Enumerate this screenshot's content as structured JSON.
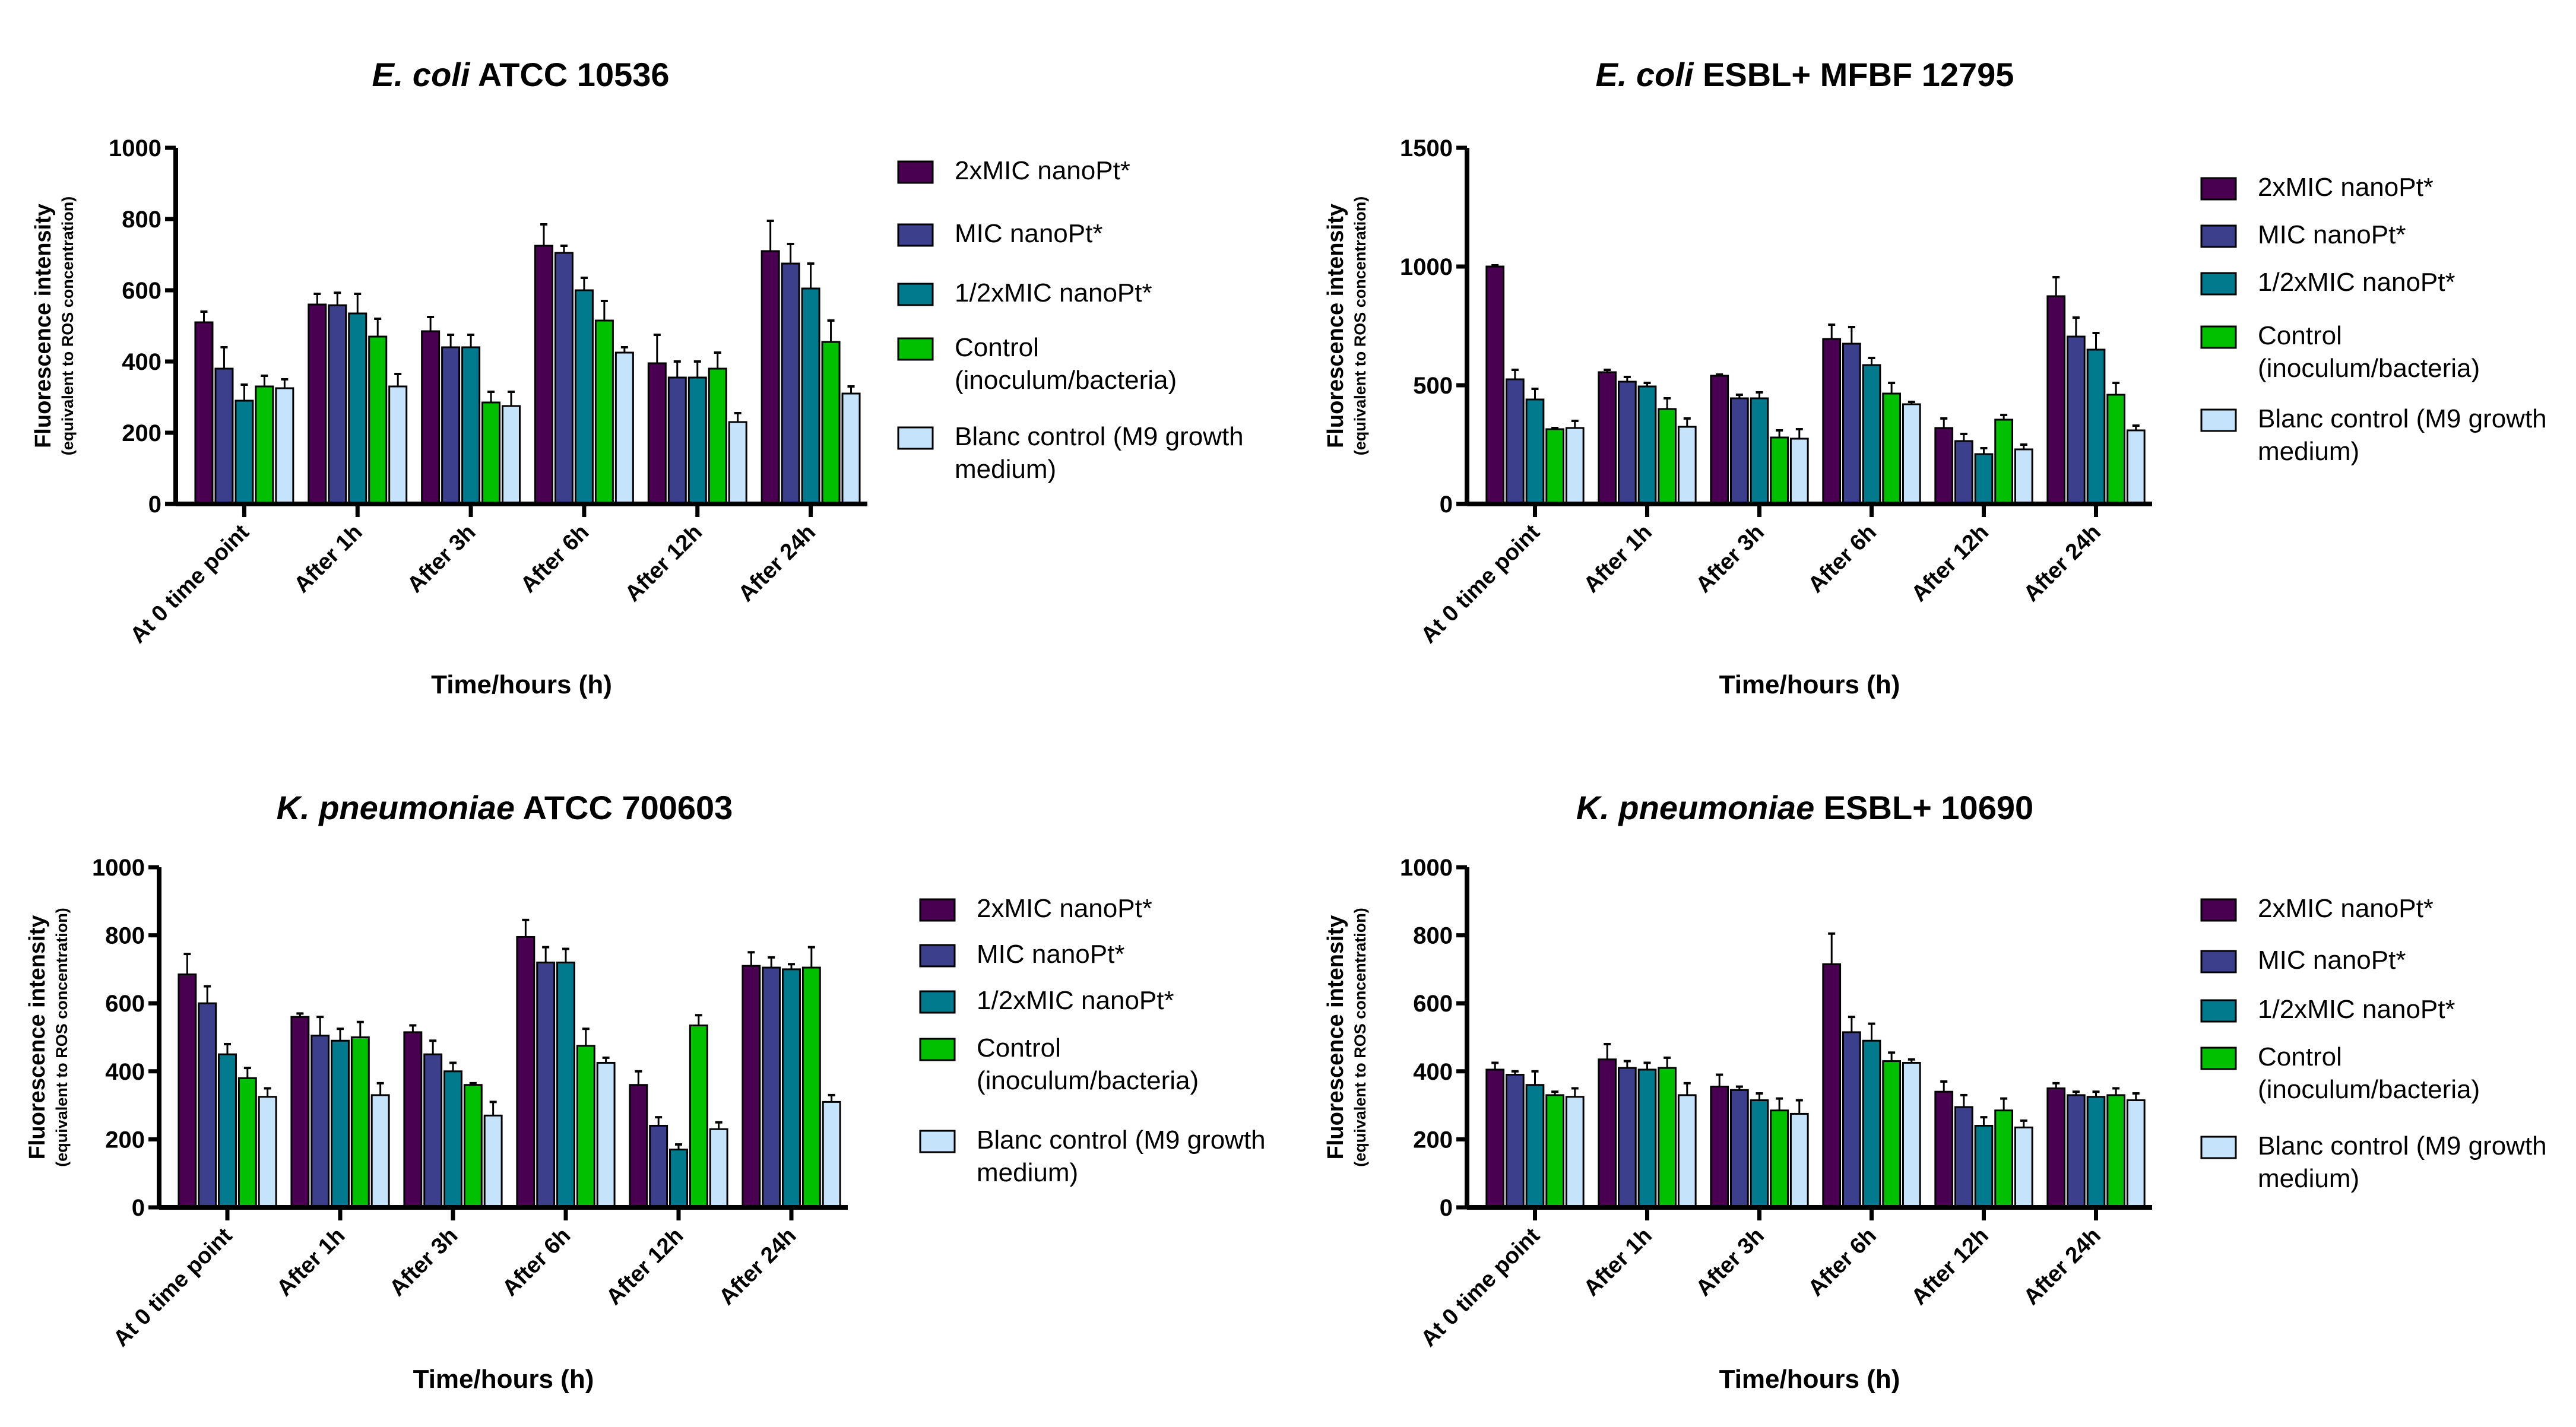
{
  "colors": [
    "#4a0050",
    "#3b3f8c",
    "#007a8c",
    "#00c000",
    "#c5e3fa"
  ],
  "legend": [
    "2xMIC nanoPt*",
    "MIC nanoPt*",
    "1/2xMIC nanoPt*",
    [
      "Control",
      "(inoculum/bacteria)"
    ],
    [
      "Blanc control (M9 growth",
      "medium)"
    ]
  ],
  "chart_data": [
    {
      "type": "bar",
      "title_italic": "E. coli",
      "title_rest": " ATCC  10536",
      "ylabel": "Fluorescence intensity",
      "ylabel_sub": "(equivalent to ROS concentration)",
      "xlabel": "Time/hours (h)",
      "ylim": [
        0,
        1000
      ],
      "yticks": [
        0,
        200,
        400,
        600,
        800,
        1000
      ],
      "categories": [
        "At 0 time point",
        "After 1h",
        "After 3h",
        "After 6h",
        "After 12h",
        "After 24h"
      ],
      "series": [
        {
          "name": "2xMIC nanoPt*",
          "values": [
            510,
            560,
            485,
            725,
            395,
            710
          ],
          "errors": [
            30,
            30,
            40,
            60,
            80,
            85
          ]
        },
        {
          "name": "MIC nanoPt*",
          "values": [
            380,
            558,
            440,
            705,
            355,
            675
          ],
          "errors": [
            60,
            35,
            35,
            20,
            45,
            55
          ]
        },
        {
          "name": "1/2xMIC nanoPt*",
          "values": [
            290,
            535,
            440,
            600,
            355,
            605
          ],
          "errors": [
            45,
            55,
            35,
            35,
            45,
            70
          ]
        },
        {
          "name": "Control (inoculum/bacteria)",
          "values": [
            330,
            470,
            285,
            515,
            380,
            455
          ],
          "errors": [
            30,
            50,
            30,
            55,
            45,
            60
          ]
        },
        {
          "name": "Blanc control (M9 growth medium)",
          "values": [
            325,
            330,
            275,
            425,
            230,
            310
          ],
          "errors": [
            25,
            35,
            40,
            15,
            25,
            20
          ]
        }
      ]
    },
    {
      "type": "bar",
      "title_italic": "E. coli",
      "title_rest": " ESBL+ MFBF 12795",
      "ylabel": "Fluorescence intensity",
      "ylabel_sub": "(equivalent to ROS concentration)",
      "xlabel": "Time/hours (h)",
      "ylim": [
        0,
        1500
      ],
      "yticks": [
        0,
        500,
        1000,
        1500
      ],
      "categories": [
        "At 0 time point",
        "After 1h",
        "After 3h",
        "After 6h",
        "After 12h",
        "After 24h"
      ],
      "series": [
        {
          "name": "2xMIC nanoPt*",
          "values": [
            1000,
            555,
            540,
            695,
            320,
            875
          ],
          "errors": [
            5,
            10,
            5,
            60,
            40,
            80
          ]
        },
        {
          "name": "MIC nanoPt*",
          "values": [
            525,
            515,
            445,
            675,
            265,
            705
          ],
          "errors": [
            40,
            20,
            15,
            70,
            30,
            80
          ]
        },
        {
          "name": "1/2xMIC nanoPt*",
          "values": [
            440,
            495,
            445,
            585,
            210,
            650
          ],
          "errors": [
            45,
            15,
            25,
            30,
            25,
            70
          ]
        },
        {
          "name": "Control (inoculum/bacteria)",
          "values": [
            315,
            400,
            280,
            465,
            355,
            460
          ],
          "errors": [
            5,
            45,
            30,
            45,
            20,
            50
          ]
        },
        {
          "name": "Blanc control (M9 growth medium)",
          "values": [
            320,
            325,
            275,
            420,
            230,
            310
          ],
          "errors": [
            30,
            35,
            40,
            10,
            20,
            20
          ]
        }
      ]
    },
    {
      "type": "bar",
      "title_italic": "K. pneumoniae",
      "title_rest": " ATCC 700603",
      "ylabel": "Fluorescence intensity",
      "ylabel_sub": "(equivalent to ROS concentration)",
      "xlabel": "Time/hours (h)",
      "ylim": [
        0,
        1000
      ],
      "yticks": [
        0,
        200,
        400,
        600,
        800,
        1000
      ],
      "categories": [
        "At 0 time point",
        "After 1h",
        "After 3h",
        "After 6h",
        "After 12h",
        "After 24h"
      ],
      "series": [
        {
          "name": "2xMIC nanoPt*",
          "values": [
            685,
            560,
            515,
            795,
            360,
            710
          ],
          "errors": [
            60,
            10,
            20,
            50,
            40,
            40
          ]
        },
        {
          "name": "MIC nanoPt*",
          "values": [
            600,
            505,
            450,
            720,
            240,
            705
          ],
          "errors": [
            50,
            55,
            40,
            45,
            25,
            30
          ]
        },
        {
          "name": "1/2xMIC nanoPt*",
          "values": [
            450,
            490,
            400,
            720,
            170,
            700
          ],
          "errors": [
            30,
            35,
            25,
            40,
            15,
            15
          ]
        },
        {
          "name": "Control (inoculum/bacteria)",
          "values": [
            380,
            500,
            360,
            475,
            535,
            705
          ],
          "errors": [
            30,
            45,
            5,
            50,
            30,
            60
          ]
        },
        {
          "name": "Blanc control (M9 growth medium)",
          "values": [
            325,
            330,
            270,
            425,
            230,
            310
          ],
          "errors": [
            25,
            35,
            40,
            15,
            20,
            20
          ]
        }
      ]
    },
    {
      "type": "bar",
      "title_italic": "K. pneumoniae",
      "title_rest": " ESBL+ 10690",
      "ylabel": "Fluorescence intensity",
      "ylabel_sub": "(equivalent to ROS concentration)",
      "xlabel": "Time/hours (h)",
      "ylim": [
        0,
        1000
      ],
      "yticks": [
        0,
        200,
        400,
        600,
        800,
        1000
      ],
      "categories": [
        "At 0 time point",
        "After 1h",
        "After 3h",
        "After 6h",
        "After 12h",
        "After 24h"
      ],
      "series": [
        {
          "name": "2xMIC nanoPt*",
          "values": [
            405,
            435,
            355,
            715,
            340,
            350
          ],
          "errors": [
            20,
            45,
            35,
            90,
            30,
            15
          ]
        },
        {
          "name": "MIC nanoPt*",
          "values": [
            390,
            410,
            345,
            515,
            295,
            330
          ],
          "errors": [
            10,
            20,
            10,
            45,
            35,
            10
          ]
        },
        {
          "name": "1/2xMIC nanoPt*",
          "values": [
            360,
            405,
            315,
            490,
            240,
            325
          ],
          "errors": [
            40,
            20,
            20,
            50,
            25,
            15
          ]
        },
        {
          "name": "Control (inoculum/bacteria)",
          "values": [
            330,
            410,
            285,
            430,
            285,
            330
          ],
          "errors": [
            10,
            30,
            35,
            25,
            35,
            20
          ]
        },
        {
          "name": "Blanc control (M9 growth medium)",
          "values": [
            325,
            330,
            275,
            425,
            235,
            315
          ],
          "errors": [
            25,
            35,
            40,
            10,
            20,
            20
          ]
        }
      ]
    }
  ]
}
